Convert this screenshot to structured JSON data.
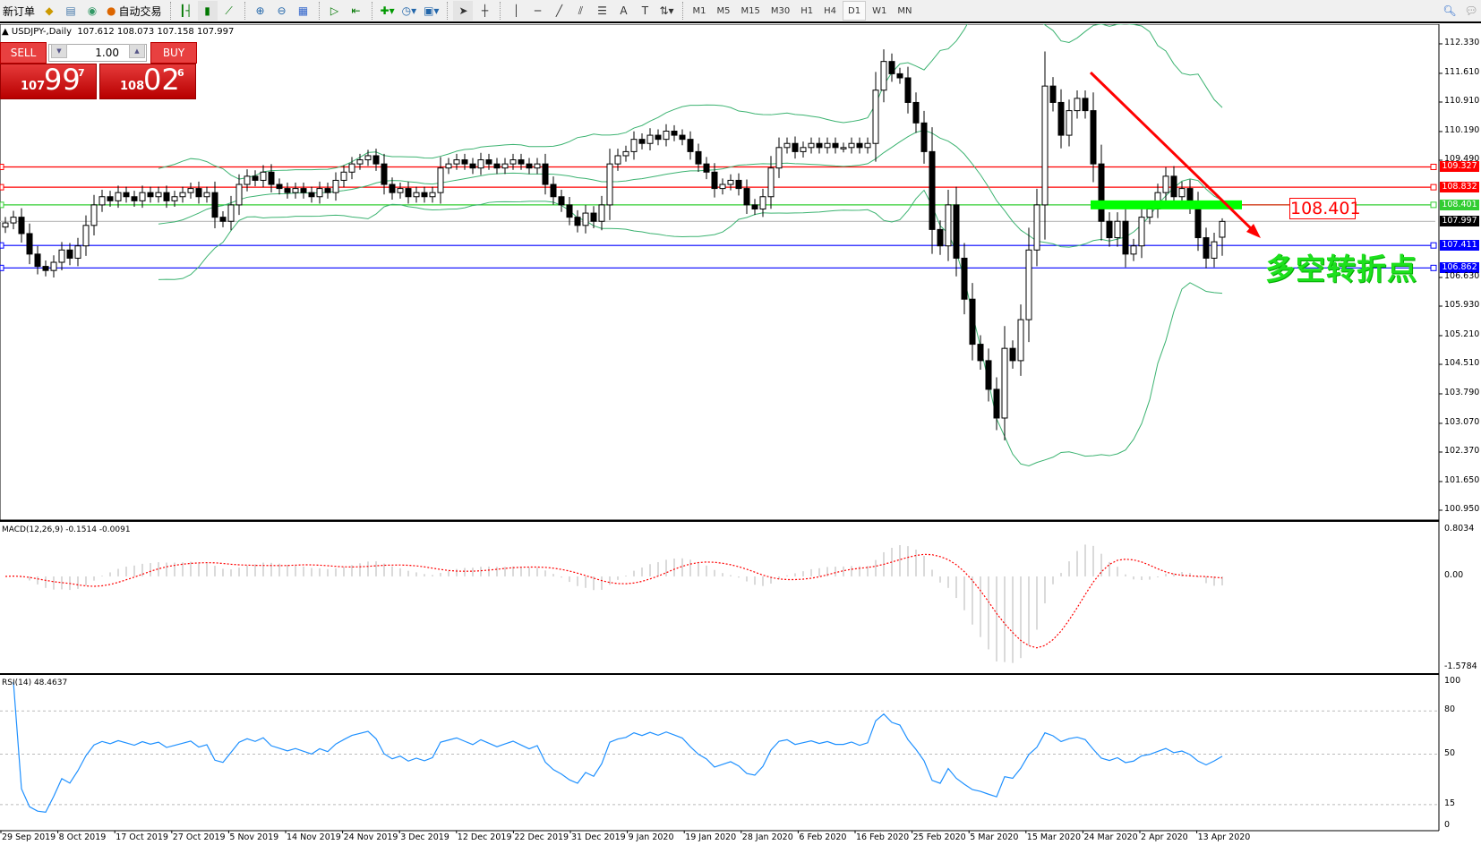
{
  "toolbar": {
    "new_order": "新订单",
    "auto_trading": "自动交易",
    "icons": [
      "market-watch-icon",
      "data-window-icon",
      "signals-icon",
      "bar-chart-icon",
      "candle-chart-icon",
      "line-chart-icon",
      "zoom-in-icon",
      "zoom-out-icon",
      "tile-windows-icon",
      "autoscroll-icon",
      "chart-shift-icon",
      "indicators-icon",
      "periods-icon",
      "templates-icon",
      "cursor-icon",
      "crosshair-icon",
      "vertical-line-icon",
      "horizontal-line-icon",
      "trendline-icon",
      "fibonacci-icon",
      "fibo-fan-icon",
      "text-icon",
      "text-label-icon",
      "arrows-icon"
    ],
    "text_tool": "A",
    "timeframes": [
      "M1",
      "M5",
      "M15",
      "M30",
      "H1",
      "H4",
      "D1",
      "W1",
      "MN"
    ],
    "active_timeframe": "D1"
  },
  "header": {
    "symbol": "USDJPY-,Daily",
    "ohlc": "107.612 108.073 107.158 107.997"
  },
  "trade_panel": {
    "sell_label": "SELL",
    "buy_label": "BUY",
    "lot": "1.00",
    "sell": {
      "big": "107",
      "main": "99",
      "sup": "7"
    },
    "buy": {
      "big": "108",
      "main": "02",
      "sup": "6"
    }
  },
  "colors": {
    "bull_body": "#ffffff",
    "bear_body": "#000000",
    "bands": "#3cb371",
    "macd_hist": "#c0c0c0",
    "macd_signal": "#ff0000",
    "rsi": "#1e90ff",
    "resistance": "#ff0000",
    "pivot": "#32cd32",
    "support": "#0000ff",
    "bid": "#c0c0c0"
  },
  "chart_data": [
    {
      "type": "candlestick",
      "title": "USDJPY-,Daily",
      "ylim": [
        100.71,
        112.81
      ],
      "y_ticks": [
        "112.330",
        "111.610",
        "110.910",
        "110.190",
        "109.490",
        "106.630",
        "105.930",
        "105.210",
        "104.510",
        "103.790",
        "103.070",
        "102.370",
        "101.650",
        "100.950"
      ],
      "x_ticks": [
        "29 Sep 2019",
        "8 Oct 2019",
        "17 Oct 2019",
        "27 Oct 2019",
        "5 Nov 2019",
        "14 Nov 2019",
        "24 Nov 2019",
        "3 Dec 2019",
        "12 Dec 2019",
        "22 Dec 2019",
        "31 Dec 2019",
        "9 Jan 2020",
        "19 Jan 2020",
        "28 Jan 2020",
        "6 Feb 2020",
        "16 Feb 2020",
        "25 Feb 2020",
        "5 Mar 2020",
        "15 Mar 2020",
        "24 Mar 2020",
        "2 Apr 2020",
        "13 Apr 2020"
      ],
      "last_bar": {
        "open": 107.612,
        "high": 108.073,
        "low": 107.158,
        "close": 107.997
      },
      "closes": [
        107.96,
        108.1,
        107.7,
        107.2,
        106.9,
        106.8,
        107.0,
        107.3,
        107.1,
        107.4,
        107.9,
        108.4,
        108.6,
        108.5,
        108.7,
        108.6,
        108.5,
        108.7,
        108.6,
        108.7,
        108.5,
        108.6,
        108.7,
        108.8,
        108.6,
        108.7,
        108.1,
        108.0,
        108.4,
        108.9,
        109.1,
        109.0,
        109.2,
        108.9,
        108.8,
        108.7,
        108.8,
        108.7,
        108.6,
        108.8,
        108.7,
        109.0,
        109.2,
        109.4,
        109.5,
        109.6,
        109.4,
        108.9,
        108.7,
        108.8,
        108.6,
        108.7,
        108.6,
        108.7,
        109.3,
        109.4,
        109.5,
        109.4,
        109.3,
        109.5,
        109.4,
        109.3,
        109.4,
        109.5,
        109.4,
        109.3,
        109.4,
        108.9,
        108.6,
        108.4,
        108.1,
        107.9,
        108.2,
        108.0,
        108.4,
        109.4,
        109.6,
        109.7,
        110.0,
        109.9,
        110.1,
        110.0,
        110.2,
        110.1,
        110.0,
        109.7,
        109.4,
        109.2,
        108.8,
        108.9,
        109.0,
        108.8,
        108.4,
        108.3,
        108.6,
        109.3,
        109.8,
        109.9,
        109.7,
        109.8,
        109.9,
        109.8,
        109.9,
        109.8,
        109.8,
        109.9,
        109.8,
        109.9,
        111.2,
        111.9,
        111.6,
        111.5,
        110.9,
        110.4,
        109.7,
        107.8,
        107.4,
        108.4,
        107.1,
        106.1,
        105.0,
        104.6,
        103.9,
        103.2,
        104.9,
        104.6,
        105.6,
        107.3,
        108.4,
        111.3,
        110.9,
        110.1,
        110.7,
        111.0,
        110.7,
        109.4,
        108.0,
        107.6,
        108.0,
        107.2,
        107.4,
        108.1,
        108.3,
        108.7,
        109.1,
        108.6,
        108.8,
        108.4,
        107.6,
        107.1,
        107.5,
        107.997
      ],
      "indicators": {
        "bollinger": {
          "period": 20,
          "deviation": 2
        }
      },
      "levels": [
        {
          "value": "109.327",
          "color": "#ff0000"
        },
        {
          "value": "108.832",
          "color": "#ff0000"
        },
        {
          "value": "108.401",
          "color": "#32cd32"
        },
        {
          "value": "107.997",
          "color": "#000000"
        },
        {
          "value": "107.411",
          "color": "#0000ff"
        },
        {
          "value": "106.862",
          "color": "#0000ff"
        }
      ],
      "annotations": {
        "level_label": "108.401",
        "text": "多空转折点",
        "arrow": "downtrend arrow",
        "zone_price": 108.401
      }
    },
    {
      "type": "bar+line",
      "title": "MACD(12,26,9) -0.1514 -0.0091",
      "ylim": [
        -1.5784,
        0.8034
      ],
      "y_ticks": [
        "0.8034",
        "0.00",
        "-1.5784"
      ],
      "params": [
        12,
        26,
        9
      ]
    },
    {
      "type": "line",
      "title": "RSI(14) 48.4637",
      "ylim": [
        0,
        100
      ],
      "y_ticks": [
        "100",
        "80",
        "50",
        "15",
        "0"
      ],
      "levels": [
        80,
        50,
        15
      ],
      "period": 14
    }
  ]
}
